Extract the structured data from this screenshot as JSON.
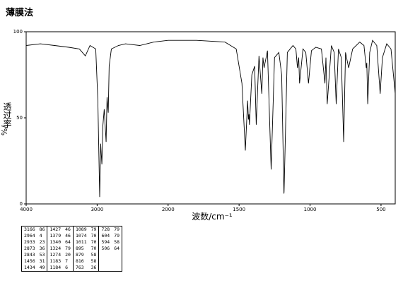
{
  "title": "薄膜法",
  "chart_data": {
    "type": "line",
    "xlabel": "波数/cm⁻¹",
    "ylabel": "透过率",
    "yunit": "%/",
    "xlim": [
      4000,
      400
    ],
    "ylim": [
      0,
      100
    ],
    "xticks": [
      4000,
      3000,
      2000,
      1500,
      1000,
      500
    ],
    "yticks": [
      0,
      50,
      100
    ],
    "color": "#000000",
    "x": [
      4000,
      3800,
      3600,
      3400,
      3250,
      3166,
      3100,
      3020,
      2990,
      2964,
      2950,
      2933,
      2920,
      2900,
      2873,
      2860,
      2843,
      2830,
      2800,
      2700,
      2600,
      2400,
      2200,
      2000,
      1800,
      1600,
      1520,
      1480,
      1456,
      1440,
      1434,
      1430,
      1427,
      1410,
      1390,
      1379,
      1360,
      1340,
      1332,
      1324,
      1300,
      1274,
      1250,
      1220,
      1200,
      1184,
      1183,
      1160,
      1120,
      1100,
      1089,
      1080,
      1074,
      1050,
      1030,
      1011,
      990,
      960,
      920,
      895,
      888,
      879,
      850,
      830,
      816,
      800,
      780,
      763,
      750,
      728,
      700,
      650,
      620,
      604,
      600,
      594,
      580,
      560,
      530,
      506,
      490,
      460,
      430,
      400
    ],
    "values": [
      92,
      93,
      92,
      91,
      90,
      86,
      92,
      90,
      60,
      4,
      35,
      23,
      45,
      55,
      36,
      62,
      53,
      80,
      90,
      92,
      93,
      92,
      94,
      95,
      95,
      94,
      90,
      70,
      31,
      60,
      49,
      52,
      46,
      75,
      80,
      46,
      86,
      64,
      85,
      79,
      89,
      20,
      85,
      88,
      75,
      6,
      7,
      88,
      92,
      90,
      79,
      85,
      70,
      90,
      88,
      70,
      89,
      91,
      90,
      70,
      85,
      58,
      92,
      88,
      58,
      90,
      85,
      36,
      88,
      79,
      90,
      94,
      92,
      79,
      82,
      58,
      88,
      95,
      92,
      64,
      85,
      93,
      90,
      64
    ]
  },
  "peak_table": [
    [
      [
        3166,
        86
      ],
      [
        2964,
        4
      ],
      [
        2933,
        23
      ],
      [
        2873,
        36
      ],
      [
        2843,
        53
      ],
      [
        1456,
        31
      ],
      [
        1434,
        49
      ]
    ],
    [
      [
        1427,
        46
      ],
      [
        1379,
        46
      ],
      [
        1340,
        64
      ],
      [
        1324,
        79
      ],
      [
        1274,
        20
      ],
      [
        1183,
        7
      ],
      [
        1184,
        6
      ]
    ],
    [
      [
        1089,
        79
      ],
      [
        1074,
        70
      ],
      [
        1011,
        70
      ],
      [
        895,
        70
      ],
      [
        879,
        58
      ],
      [
        816,
        58
      ],
      [
        763,
        36
      ]
    ],
    [
      [
        728,
        79
      ],
      [
        604,
        79
      ],
      [
        594,
        58
      ],
      [
        506,
        64
      ]
    ]
  ]
}
